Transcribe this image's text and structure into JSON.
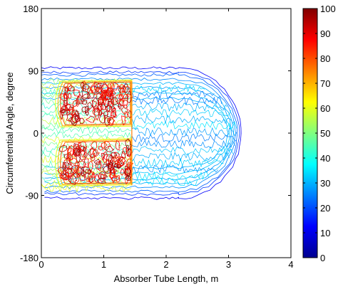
{
  "chart_data": {
    "type": "contour",
    "title": "",
    "xlabel": "Absorber Tube Length, m",
    "ylabel": "Circumferential Angle, degree",
    "xlim": [
      0,
      4
    ],
    "ylim": [
      -180,
      180
    ],
    "x_ticks": [
      0,
      1,
      2,
      3,
      4
    ],
    "y_ticks": [
      -180,
      -90,
      0,
      90,
      180
    ],
    "colorbar": {
      "min": 0,
      "max": 100,
      "ticks": [
        0,
        10,
        20,
        30,
        40,
        50,
        60,
        70,
        80,
        90,
        100
      ],
      "colormap": "jet"
    },
    "grid": false,
    "regions": [
      {
        "name": "outer envelope",
        "x_range": [
          0,
          3.2
        ],
        "y_range": [
          -90,
          90
        ],
        "rounded_end": "right",
        "level": 35
      },
      {
        "name": "upper hot zone",
        "x_range": [
          0.2,
          1.45
        ],
        "y_range": [
          10,
          75
        ],
        "level": 85
      },
      {
        "name": "lower hot zone",
        "x_range": [
          0.2,
          1.45
        ],
        "y_range": [
          -75,
          -10
        ],
        "level": 85
      },
      {
        "name": "downstream zone",
        "x_range": [
          1.45,
          3.2
        ],
        "y_range": [
          -85,
          85
        ],
        "level": 30
      }
    ]
  }
}
